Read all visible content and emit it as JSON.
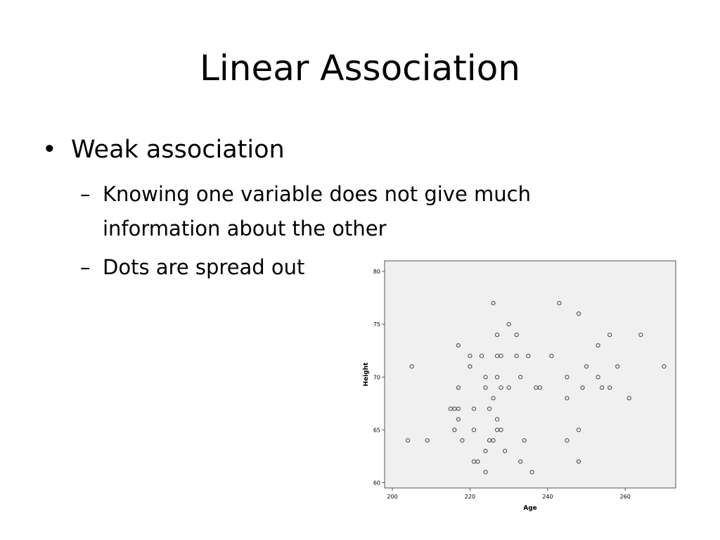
{
  "slide": {
    "title": "Linear Association",
    "bullet": "Weak association",
    "sub_items": [
      "Knowing one variable does not give much information about the other",
      "Dots are spread out"
    ]
  },
  "chart_data": {
    "type": "scatter",
    "title": "",
    "xlabel": "Age",
    "ylabel": "Height",
    "xlim": [
      198,
      273
    ],
    "ylim": [
      59.5,
      81
    ],
    "xticks": [
      200,
      220,
      240,
      260
    ],
    "yticks": [
      60,
      65,
      70,
      75,
      80
    ],
    "grid": false,
    "background_color": "#f0f0f0",
    "marker_color": "#444444",
    "points": [
      {
        "x": 204,
        "y": 64
      },
      {
        "x": 205,
        "y": 71
      },
      {
        "x": 209,
        "y": 64
      },
      {
        "x": 215,
        "y": 67
      },
      {
        "x": 216,
        "y": 67
      },
      {
        "x": 216,
        "y": 65
      },
      {
        "x": 217,
        "y": 67
      },
      {
        "x": 217,
        "y": 73
      },
      {
        "x": 217,
        "y": 69
      },
      {
        "x": 217,
        "y": 66
      },
      {
        "x": 218,
        "y": 64
      },
      {
        "x": 220,
        "y": 72
      },
      {
        "x": 220,
        "y": 71
      },
      {
        "x": 221,
        "y": 67
      },
      {
        "x": 221,
        "y": 65
      },
      {
        "x": 221,
        "y": 62
      },
      {
        "x": 222,
        "y": 62
      },
      {
        "x": 223,
        "y": 72
      },
      {
        "x": 224,
        "y": 70
      },
      {
        "x": 224,
        "y": 69
      },
      {
        "x": 224,
        "y": 63
      },
      {
        "x": 224,
        "y": 61
      },
      {
        "x": 225,
        "y": 67
      },
      {
        "x": 225,
        "y": 64
      },
      {
        "x": 226,
        "y": 77
      },
      {
        "x": 226,
        "y": 68
      },
      {
        "x": 226,
        "y": 64
      },
      {
        "x": 227,
        "y": 74
      },
      {
        "x": 227,
        "y": 72
      },
      {
        "x": 227,
        "y": 70
      },
      {
        "x": 227,
        "y": 66
      },
      {
        "x": 227,
        "y": 65
      },
      {
        "x": 228,
        "y": 72
      },
      {
        "x": 228,
        "y": 69
      },
      {
        "x": 228,
        "y": 65
      },
      {
        "x": 229,
        "y": 63
      },
      {
        "x": 230,
        "y": 75
      },
      {
        "x": 230,
        "y": 69
      },
      {
        "x": 232,
        "y": 74
      },
      {
        "x": 232,
        "y": 72
      },
      {
        "x": 233,
        "y": 70
      },
      {
        "x": 233,
        "y": 62
      },
      {
        "x": 234,
        "y": 64
      },
      {
        "x": 235,
        "y": 72
      },
      {
        "x": 236,
        "y": 61
      },
      {
        "x": 237,
        "y": 69
      },
      {
        "x": 238,
        "y": 69
      },
      {
        "x": 241,
        "y": 72
      },
      {
        "x": 243,
        "y": 77
      },
      {
        "x": 245,
        "y": 70
      },
      {
        "x": 245,
        "y": 68
      },
      {
        "x": 245,
        "y": 64
      },
      {
        "x": 248,
        "y": 76
      },
      {
        "x": 248,
        "y": 65
      },
      {
        "x": 248,
        "y": 62
      },
      {
        "x": 249,
        "y": 69
      },
      {
        "x": 250,
        "y": 71
      },
      {
        "x": 253,
        "y": 73
      },
      {
        "x": 253,
        "y": 70
      },
      {
        "x": 254,
        "y": 69
      },
      {
        "x": 256,
        "y": 74
      },
      {
        "x": 256,
        "y": 69
      },
      {
        "x": 258,
        "y": 71
      },
      {
        "x": 261,
        "y": 68
      },
      {
        "x": 264,
        "y": 74
      },
      {
        "x": 270,
        "y": 71
      }
    ]
  }
}
